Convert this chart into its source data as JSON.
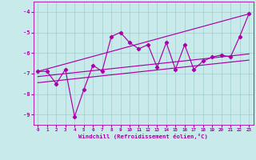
{
  "xlabel": "Windchill (Refroidissement éolien,°C)",
  "bg_color": "#c8eaea",
  "line_color": "#aa00aa",
  "marker": "D",
  "markersize": 2.2,
  "linewidth": 0.85,
  "xlim": [
    -0.5,
    23.5
  ],
  "ylim": [
    -9.5,
    -3.5
  ],
  "yticks": [
    -9,
    -8,
    -7,
    -6,
    -5,
    -4
  ],
  "xticks": [
    0,
    1,
    2,
    3,
    4,
    5,
    6,
    7,
    8,
    9,
    10,
    11,
    12,
    13,
    14,
    15,
    16,
    17,
    18,
    19,
    20,
    21,
    22,
    23
  ],
  "grid_color": "#a0cccc",
  "series1_x": [
    0,
    1,
    2,
    3,
    4,
    5,
    6,
    7,
    8,
    9,
    10,
    11,
    12,
    13,
    14,
    15,
    16,
    17,
    18,
    19,
    20,
    21,
    22,
    23
  ],
  "series1_y": [
    -6.9,
    -6.9,
    -7.5,
    -6.8,
    -9.1,
    -7.8,
    -6.6,
    -6.9,
    -5.2,
    -5.0,
    -5.5,
    -5.8,
    -5.6,
    -6.7,
    -5.5,
    -6.8,
    -5.6,
    -6.8,
    -6.4,
    -6.2,
    -6.1,
    -6.2,
    -5.2,
    -4.1
  ],
  "series2_x": [
    0,
    23
  ],
  "series2_y": [
    -6.9,
    -4.1
  ],
  "series3_x": [
    0,
    23
  ],
  "series3_y": [
    -7.15,
    -6.05
  ],
  "series4_x": [
    0,
    23
  ],
  "series4_y": [
    -7.45,
    -6.35
  ]
}
